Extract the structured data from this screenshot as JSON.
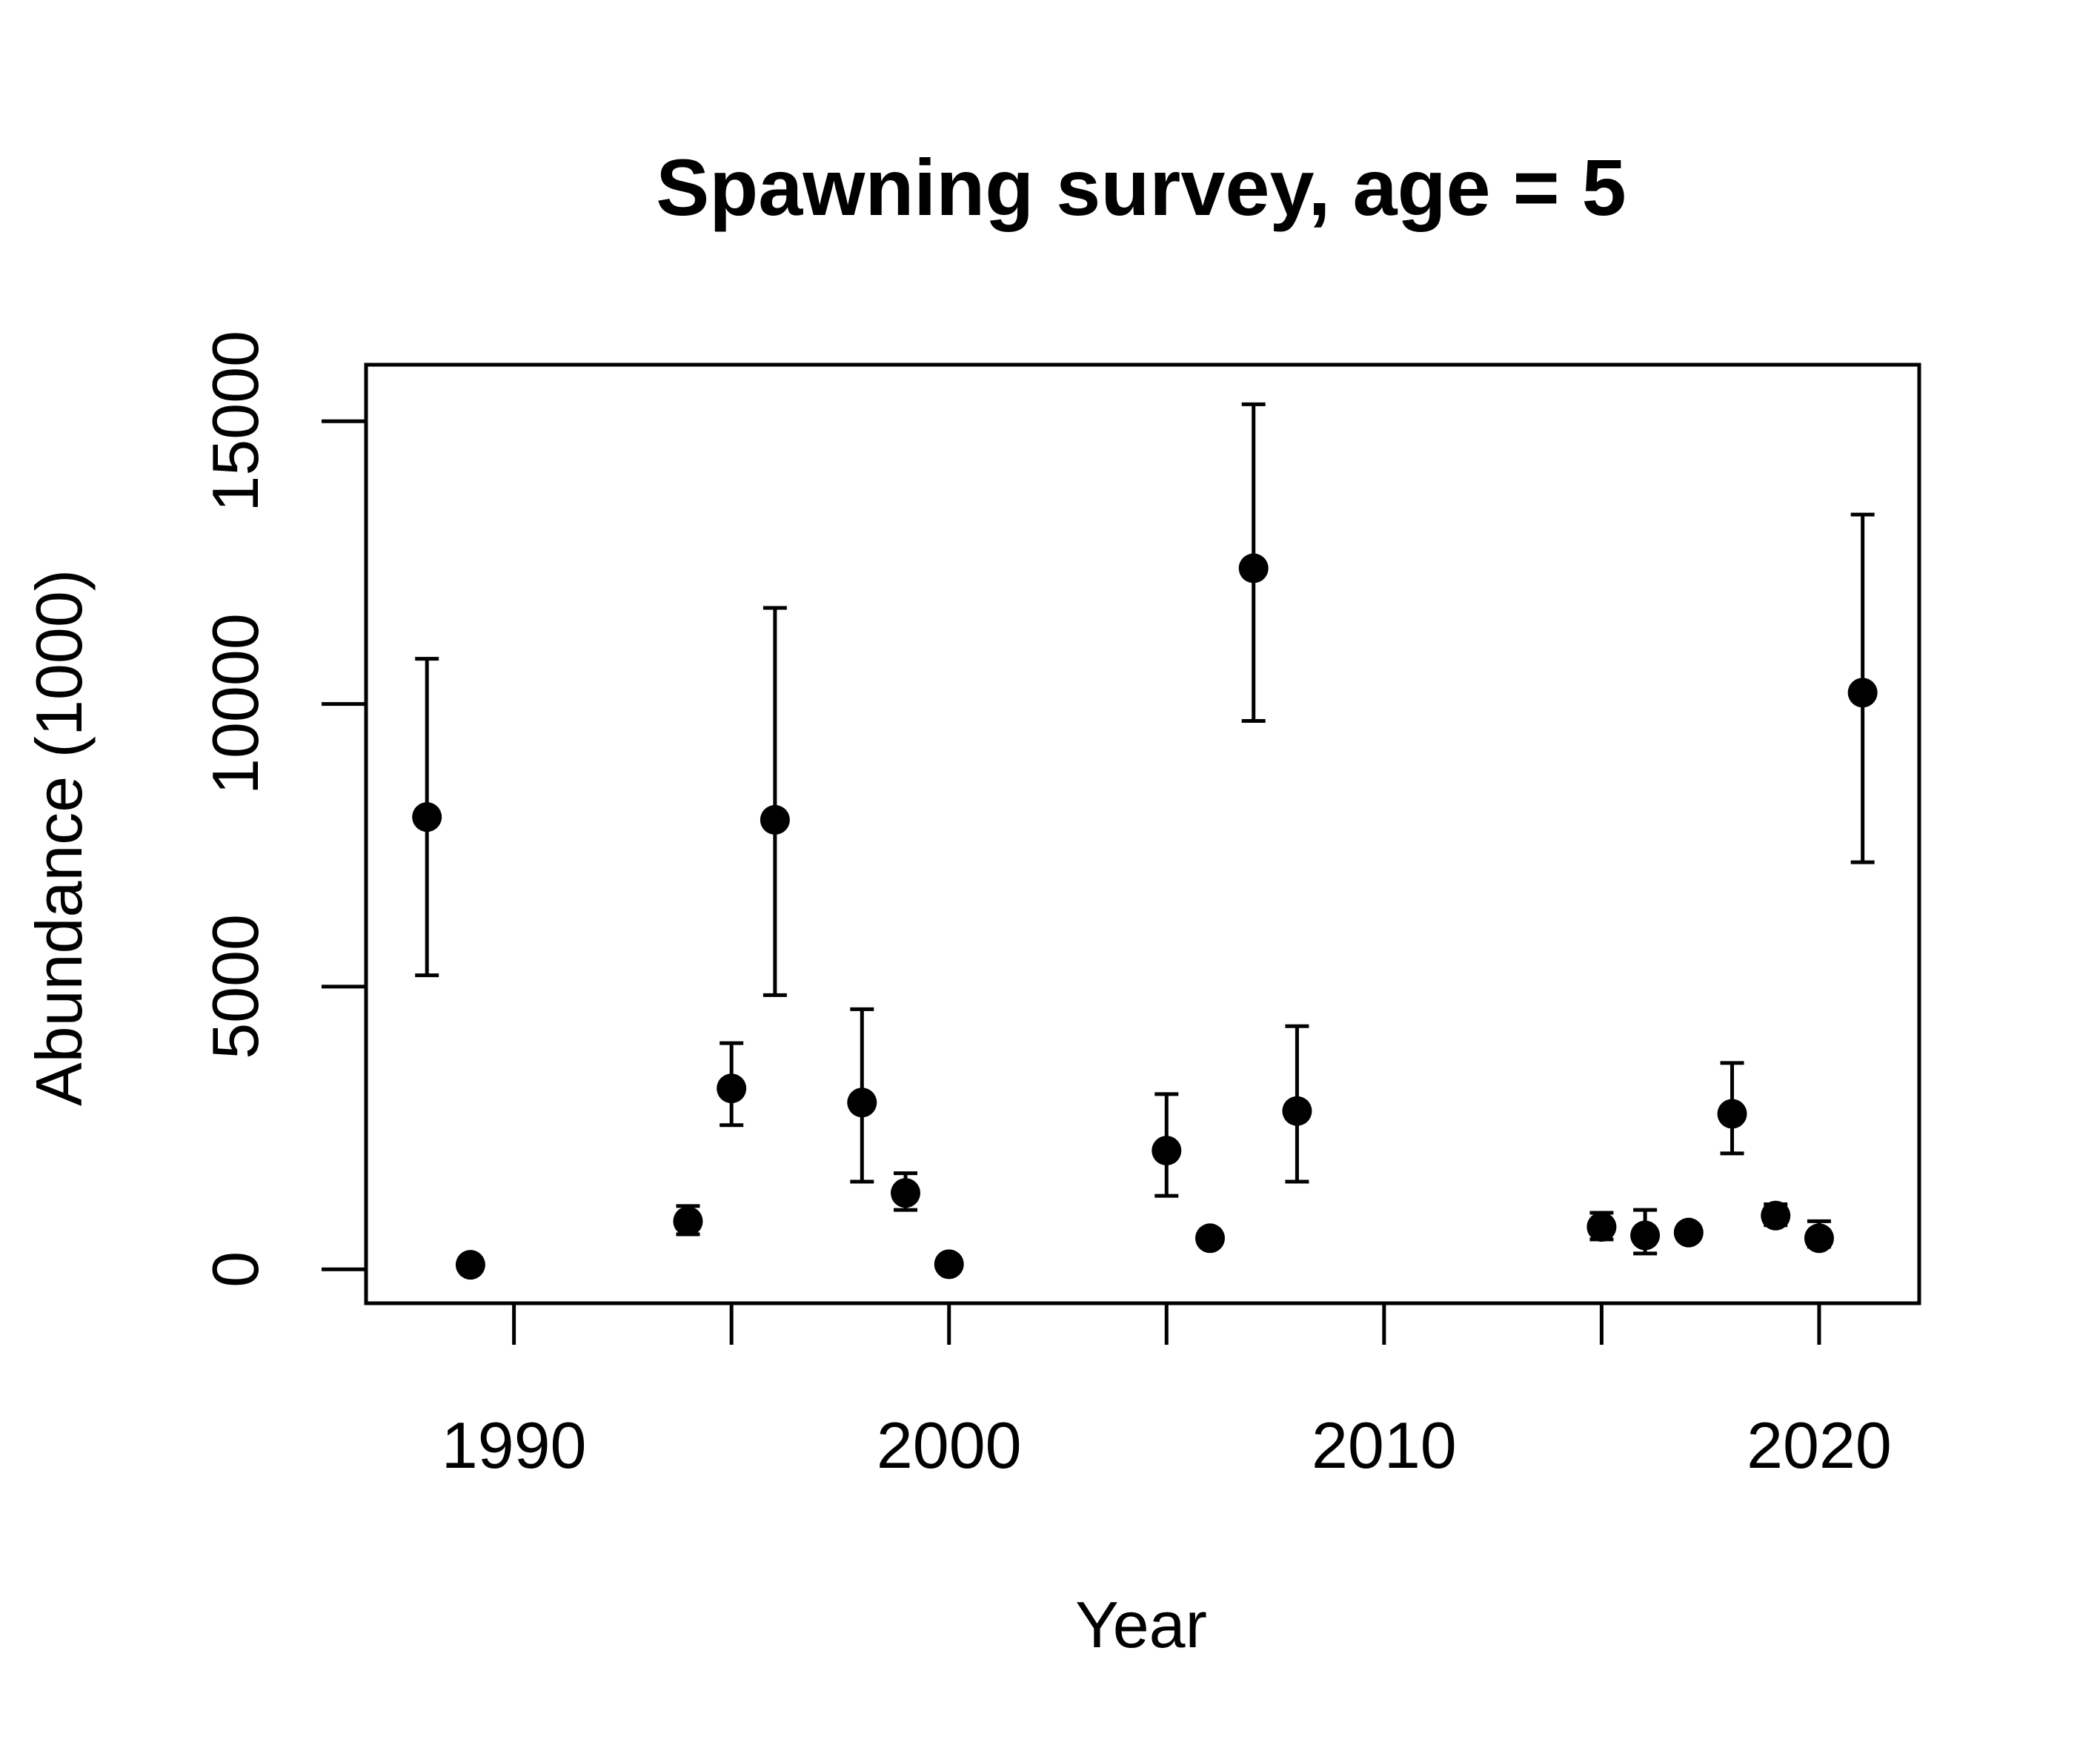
{
  "chart_data": {
    "type": "scatter",
    "title": "Spawning survey, age = 5",
    "xlabel": "Year",
    "ylabel": "Abundance (1000)",
    "xlim": [
      1986.6,
      2022.3
    ],
    "ylim": [
      -600,
      16000
    ],
    "xticks": [
      1990,
      1995,
      2000,
      2005,
      2010,
      2015,
      2020
    ],
    "xtick_labels": [
      "1990",
      "",
      "2000",
      "",
      "2010",
      "",
      "2020"
    ],
    "yticks": [
      0,
      5000,
      10000,
      15000
    ],
    "ytick_labels": [
      "0",
      "5000",
      "10000",
      "15000"
    ],
    "grid": false,
    "legend": "none",
    "point_color": "#000000",
    "error_bars": true,
    "points": [
      {
        "x": 1988,
        "y": 8000,
        "lo": 5200,
        "hi": 10800
      },
      {
        "x": 1989,
        "y": 80,
        "lo": 50,
        "hi": 110
      },
      {
        "x": 1994,
        "y": 850,
        "lo": 620,
        "hi": 1120
      },
      {
        "x": 1995,
        "y": 3200,
        "lo": 2550,
        "hi": 4000
      },
      {
        "x": 1996,
        "y": 7950,
        "lo": 4850,
        "hi": 11700
      },
      {
        "x": 1998,
        "y": 2950,
        "lo": 1550,
        "hi": 4600
      },
      {
        "x": 1999,
        "y": 1350,
        "lo": 1050,
        "hi": 1700
      },
      {
        "x": 2000,
        "y": 90,
        "lo": 60,
        "hi": 120
      },
      {
        "x": 2005,
        "y": 2100,
        "lo": 1300,
        "hi": 3100
      },
      {
        "x": 2006,
        "y": 550,
        "lo": 450,
        "hi": 650
      },
      {
        "x": 2007,
        "y": 12400,
        "lo": 9700,
        "hi": 15300
      },
      {
        "x": 2008,
        "y": 2800,
        "lo": 1550,
        "hi": 4300
      },
      {
        "x": 2015,
        "y": 750,
        "lo": 530,
        "hi": 1000
      },
      {
        "x": 2016,
        "y": 600,
        "lo": 280,
        "hi": 1050
      },
      {
        "x": 2017,
        "y": 650,
        "lo": 600,
        "hi": 700
      },
      {
        "x": 2018,
        "y": 2750,
        "lo": 2050,
        "hi": 3650
      },
      {
        "x": 2019,
        "y": 950,
        "lo": 780,
        "hi": 1150
      },
      {
        "x": 2020,
        "y": 550,
        "lo": 400,
        "hi": 850
      },
      {
        "x": 2021,
        "y": 10200,
        "lo": 7200,
        "hi": 13350
      }
    ]
  }
}
